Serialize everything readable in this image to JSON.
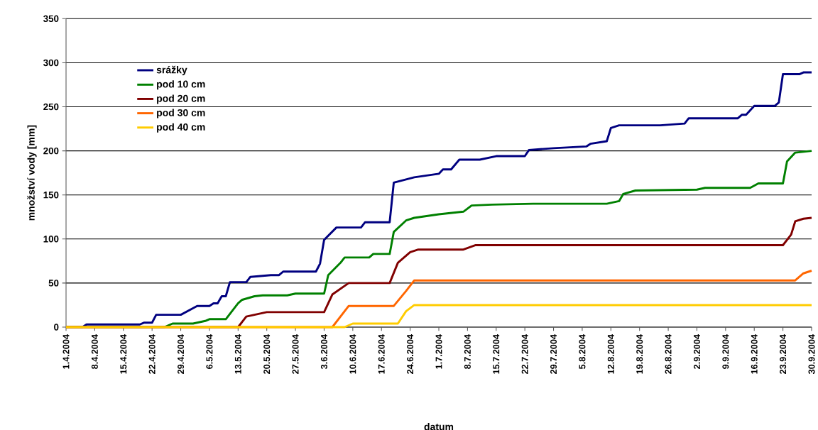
{
  "chart_data": {
    "type": "line",
    "xlabel": "datum",
    "ylabel": "množství vody [mm]",
    "xlim": [
      "2004-04-01",
      "2004-09-30"
    ],
    "xticks": [
      {
        "value": "2004-04-01",
        "label": "1.4.2004"
      },
      {
        "value": "2004-04-08",
        "label": "8.4.2004"
      },
      {
        "value": "2004-04-15",
        "label": "15.4.2004"
      },
      {
        "value": "2004-04-22",
        "label": "22.4.2004"
      },
      {
        "value": "2004-04-29",
        "label": "29.4.2004"
      },
      {
        "value": "2004-05-06",
        "label": "6.5.2004"
      },
      {
        "value": "2004-05-13",
        "label": "13.5.2004"
      },
      {
        "value": "2004-05-20",
        "label": "20.5.2004"
      },
      {
        "value": "2004-05-27",
        "label": "27.5.2004"
      },
      {
        "value": "2004-06-03",
        "label": "3.6.2004"
      },
      {
        "value": "2004-06-10",
        "label": "10.6.2004"
      },
      {
        "value": "2004-06-17",
        "label": "17.6.2004"
      },
      {
        "value": "2004-06-24",
        "label": "24.6.2004"
      },
      {
        "value": "2004-07-01",
        "label": "1.7.2004"
      },
      {
        "value": "2004-07-08",
        "label": "8.7.2004"
      },
      {
        "value": "2004-07-15",
        "label": "15.7.2004"
      },
      {
        "value": "2004-07-22",
        "label": "22.7.2004"
      },
      {
        "value": "2004-07-29",
        "label": "29.7.2004"
      },
      {
        "value": "2004-08-05",
        "label": "5.8.2004"
      },
      {
        "value": "2004-08-12",
        "label": "12.8.2004"
      },
      {
        "value": "2004-08-19",
        "label": "19.8.2004"
      },
      {
        "value": "2004-08-26",
        "label": "26.8.2004"
      },
      {
        "value": "2004-09-02",
        "label": "2.9.2004"
      },
      {
        "value": "2004-09-09",
        "label": "9.9.2004"
      },
      {
        "value": "2004-09-16",
        "label": "16.9.2004"
      },
      {
        "value": "2004-09-23",
        "label": "23.9.2004"
      },
      {
        "value": "2004-09-30",
        "label": "30.9.2004"
      }
    ],
    "ylim": [
      0,
      350
    ],
    "yticks": [
      0,
      50,
      100,
      150,
      200,
      250,
      300,
      350
    ],
    "grid": "y",
    "legend": "top left",
    "series": [
      {
        "name": "srážky",
        "color": "#000080",
        "x": [
          "2004-04-01",
          "2004-04-05",
          "2004-04-06",
          "2004-04-19",
          "2004-04-20",
          "2004-04-22",
          "2004-04-23",
          "2004-04-29",
          "2004-05-03",
          "2004-05-06",
          "2004-05-07",
          "2004-05-08",
          "2004-05-09",
          "2004-05-10",
          "2004-05-11",
          "2004-05-15",
          "2004-05-16",
          "2004-05-21",
          "2004-05-23",
          "2004-05-24",
          "2004-06-01",
          "2004-06-02",
          "2004-06-03",
          "2004-06-06",
          "2004-06-12",
          "2004-06-13",
          "2004-06-19",
          "2004-06-20",
          "2004-06-25",
          "2004-07-01",
          "2004-07-02",
          "2004-07-04",
          "2004-07-06",
          "2004-07-11",
          "2004-07-15",
          "2004-07-22",
          "2004-07-23",
          "2004-07-29",
          "2004-08-06",
          "2004-08-07",
          "2004-08-11",
          "2004-08-12",
          "2004-08-14",
          "2004-08-24",
          "2004-08-30",
          "2004-08-31",
          "2004-09-12",
          "2004-09-13",
          "2004-09-14",
          "2004-09-16",
          "2004-09-21",
          "2004-09-22",
          "2004-09-23",
          "2004-09-27",
          "2004-09-28",
          "2004-09-30"
        ],
        "values": [
          0,
          0,
          3,
          3,
          5,
          5,
          14,
          14,
          24,
          24,
          27,
          27,
          35,
          35,
          51,
          51,
          57,
          59,
          59,
          63,
          63,
          72,
          99,
          113,
          113,
          119,
          119,
          164,
          170,
          174,
          179,
          179,
          190,
          190,
          194,
          194,
          201,
          203,
          205,
          208,
          211,
          226,
          229,
          229,
          231,
          237,
          237,
          241,
          241,
          251,
          251,
          255,
          287,
          287,
          289,
          289
        ]
      },
      {
        "name": "pod 10 cm",
        "color": "#008000",
        "x": [
          "2004-04-01",
          "2004-04-25",
          "2004-04-27",
          "2004-05-02",
          "2004-05-05",
          "2004-05-06",
          "2004-05-10",
          "2004-05-13",
          "2004-05-14",
          "2004-05-17",
          "2004-05-19",
          "2004-05-25",
          "2004-05-27",
          "2004-06-03",
          "2004-06-04",
          "2004-06-07",
          "2004-06-08",
          "2004-06-14",
          "2004-06-15",
          "2004-06-19",
          "2004-06-20",
          "2004-06-23",
          "2004-06-25",
          "2004-07-01",
          "2004-07-07",
          "2004-07-09",
          "2004-07-14",
          "2004-07-24",
          "2004-08-11",
          "2004-08-14",
          "2004-08-15",
          "2004-08-18",
          "2004-09-02",
          "2004-09-04",
          "2004-09-15",
          "2004-09-17",
          "2004-09-23",
          "2004-09-24",
          "2004-09-26",
          "2004-09-30"
        ],
        "values": [
          0,
          0,
          4,
          4,
          7,
          9,
          9,
          27,
          31,
          35,
          36,
          36,
          38,
          38,
          59,
          73,
          79,
          79,
          83,
          83,
          108,
          121,
          124,
          128,
          131,
          138,
          139,
          140,
          140,
          143,
          151,
          155,
          156,
          158,
          158,
          163,
          163,
          188,
          198,
          200
        ]
      },
      {
        "name": "pod 20 cm",
        "color": "#800000",
        "x": [
          "2004-04-01",
          "2004-05-13",
          "2004-05-15",
          "2004-05-17",
          "2004-05-20",
          "2004-06-03",
          "2004-06-05",
          "2004-06-09",
          "2004-06-19",
          "2004-06-21",
          "2004-06-24",
          "2004-06-26",
          "2004-07-07",
          "2004-07-10",
          "2004-09-23",
          "2004-09-25",
          "2004-09-26",
          "2004-09-28",
          "2004-09-30"
        ],
        "values": [
          0,
          0,
          12,
          14,
          17,
          17,
          37,
          50,
          50,
          73,
          85,
          88,
          88,
          93,
          93,
          105,
          120,
          123,
          124
        ]
      },
      {
        "name": "pod 30 cm",
        "color": "#ff6600",
        "x": [
          "2004-04-01",
          "2004-06-05",
          "2004-06-09",
          "2004-06-20",
          "2004-06-23",
          "2004-06-25",
          "2004-09-26",
          "2004-09-28",
          "2004-09-30"
        ],
        "values": [
          0,
          0,
          24,
          24,
          41,
          53,
          53,
          61,
          64
        ]
      },
      {
        "name": "pod 40 cm",
        "color": "#ffcc00",
        "x": [
          "2004-04-01",
          "2004-06-08",
          "2004-06-10",
          "2004-06-21",
          "2004-06-23",
          "2004-06-25",
          "2004-09-30"
        ],
        "values": [
          0,
          0,
          4,
          4,
          18,
          25,
          25
        ]
      }
    ]
  }
}
